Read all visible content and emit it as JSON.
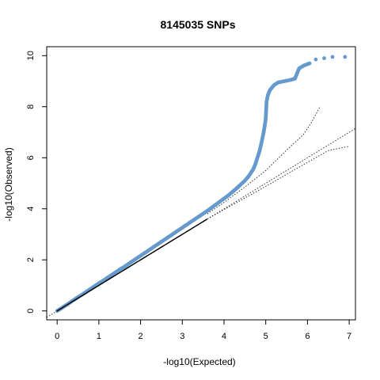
{
  "chart_data": {
    "type": "scatter",
    "title": "8145035 SNPs",
    "xlabel": "-log10(Expected)",
    "ylabel": "-log10(Observed)",
    "xlim": [
      -0.25,
      7.15
    ],
    "ylim": [
      -0.35,
      10.35
    ],
    "xticks": [
      0,
      1,
      2,
      3,
      4,
      5,
      6,
      7
    ],
    "yticks": [
      0,
      2,
      4,
      6,
      8,
      10
    ],
    "grid": false,
    "colors": {
      "points": "#6699cc",
      "null_points": "#000000",
      "reference_line": "#333333"
    },
    "series": [
      {
        "points": [
          [
            0.0,
            0.0
          ],
          [
            0.1,
            0.1
          ],
          [
            0.2,
            0.21
          ],
          [
            0.3,
            0.32
          ],
          [
            0.4,
            0.43
          ],
          [
            0.5,
            0.54
          ],
          [
            0.6,
            0.64
          ],
          [
            0.7,
            0.75
          ],
          [
            0.8,
            0.86
          ],
          [
            0.9,
            0.97
          ],
          [
            1.0,
            1.08
          ],
          [
            1.1,
            1.18
          ],
          [
            1.2,
            1.29
          ],
          [
            1.3,
            1.4
          ],
          [
            1.4,
            1.51
          ],
          [
            1.5,
            1.62
          ],
          [
            1.6,
            1.72
          ],
          [
            1.7,
            1.83
          ],
          [
            1.8,
            1.94
          ],
          [
            1.9,
            2.05
          ],
          [
            2.0,
            2.16
          ],
          [
            2.1,
            2.27
          ],
          [
            2.2,
            2.38
          ],
          [
            2.3,
            2.49
          ],
          [
            2.4,
            2.6
          ],
          [
            2.5,
            2.71
          ],
          [
            2.6,
            2.82
          ],
          [
            2.7,
            2.93
          ],
          [
            2.8,
            3.04
          ],
          [
            2.9,
            3.15
          ],
          [
            3.0,
            3.26
          ],
          [
            3.1,
            3.37
          ],
          [
            3.2,
            3.48
          ],
          [
            3.3,
            3.59
          ],
          [
            3.4,
            3.7
          ],
          [
            3.5,
            3.81
          ],
          [
            3.6,
            3.92
          ],
          [
            3.7,
            4.04
          ],
          [
            3.8,
            4.16
          ],
          [
            3.9,
            4.28
          ],
          [
            4.0,
            4.4
          ],
          [
            4.1,
            4.52
          ],
          [
            4.2,
            4.66
          ],
          [
            4.3,
            4.8
          ],
          [
            4.4,
            4.95
          ],
          [
            4.5,
            5.1
          ],
          [
            4.6,
            5.3
          ],
          [
            4.7,
            5.55
          ],
          [
            4.75,
            5.75
          ],
          [
            4.8,
            6.0
          ],
          [
            4.85,
            6.25
          ],
          [
            4.9,
            6.6
          ],
          [
            4.95,
            7.0
          ],
          [
            4.98,
            7.3
          ],
          [
            5.0,
            7.55
          ],
          [
            5.02,
            8.2
          ],
          [
            5.05,
            8.45
          ],
          [
            5.1,
            8.65
          ],
          [
            5.2,
            8.85
          ],
          [
            5.3,
            8.95
          ],
          [
            5.45,
            9.0
          ],
          [
            5.6,
            9.05
          ],
          [
            5.7,
            9.1
          ],
          [
            5.75,
            9.3
          ],
          [
            5.8,
            9.5
          ],
          [
            5.9,
            9.6
          ],
          [
            6.05,
            9.7
          ],
          [
            6.2,
            9.85
          ],
          [
            6.4,
            9.9
          ],
          [
            6.6,
            9.95
          ],
          [
            6.9,
            9.95
          ]
        ]
      },
      {
        "points": [
          [
            0.0,
            0.0
          ],
          [
            0.5,
            0.5
          ],
          [
            1.0,
            1.0
          ],
          [
            1.5,
            1.5
          ],
          [
            2.0,
            2.0
          ],
          [
            2.5,
            2.5
          ],
          [
            3.0,
            3.0
          ],
          [
            3.3,
            3.3
          ],
          [
            3.6,
            3.6
          ]
        ]
      }
    ],
    "reference_lines": {
      "diagonal": [
        [
          -0.25,
          -0.25
        ],
        [
          7.15,
          7.15
        ]
      ],
      "confidence_upper": [
        [
          3.6,
          3.8
        ],
        [
          4.0,
          4.25
        ],
        [
          4.5,
          4.85
        ],
        [
          5.0,
          5.5
        ],
        [
          5.5,
          6.3
        ],
        [
          5.9,
          6.9
        ],
        [
          6.1,
          7.4
        ],
        [
          6.3,
          8.0
        ]
      ],
      "confidence_lower": [
        [
          3.6,
          3.6
        ],
        [
          4.0,
          3.97
        ],
        [
          4.5,
          4.42
        ],
        [
          5.0,
          4.88
        ],
        [
          5.5,
          5.35
        ],
        [
          6.0,
          5.82
        ],
        [
          6.5,
          6.28
        ],
        [
          7.0,
          6.45
        ]
      ]
    }
  }
}
